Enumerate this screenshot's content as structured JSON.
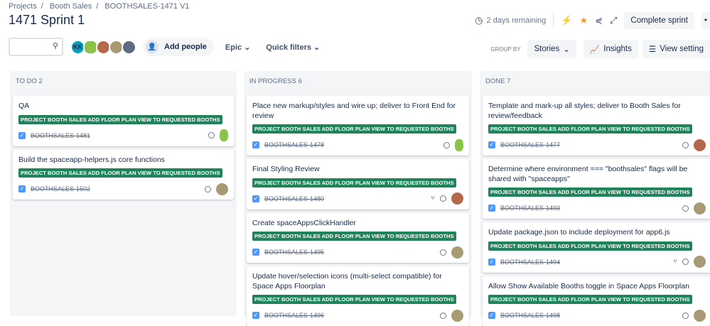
{
  "breadcrumbs": [
    "Projects",
    "Booth Sales",
    "BOOTHSALES-1471 V1"
  ],
  "title": "1471 Sprint 1",
  "header": {
    "remaining": "2 days remaining",
    "complete_sprint": "Complete sprint",
    "more": "•"
  },
  "toolbar": {
    "search_placeholder": "",
    "avatar_initials": "KK",
    "add_people": "Add people",
    "epic": "Epic",
    "quick_filters": "Quick filters",
    "group_by_label": "GROUP BY",
    "group_by_value": "Stories",
    "insights": "Insights",
    "view_settings": "View setting"
  },
  "colors": {
    "epic_lozenge": "#1f845a",
    "column_bg": "#f4f5f7",
    "star": "#ff991f",
    "checkbox": "#4c9aff"
  },
  "columns": [
    {
      "title": "TO DO 2",
      "cards": [
        {
          "title": "QA",
          "epic": "PROJECT BOOTH SALES ADD FLOOR PLAN VIEW TO REQUESTED BOOTHS",
          "key": "BOOTHSALES-1481",
          "avatar": "android",
          "branch": false
        },
        {
          "title": "Build the spaceapp-helpers.js core functions",
          "epic": "PROJECT BOOTH SALES ADD FLOOR PLAN VIEW TO REQUESTED BOOTHS",
          "key": "BOOTHSALES-1502",
          "avatar": "photo-b",
          "branch": false
        }
      ]
    },
    {
      "title": "IN PROGRESS 6",
      "cards": [
        {
          "title": "Place new markup/styles and wire up; deliver to Front End for review",
          "epic": "PROJECT BOOTH SALES ADD FLOOR PLAN VIEW TO REQUESTED BOOTHS",
          "key": "BOOTHSALES-1478",
          "avatar": "android",
          "branch": false
        },
        {
          "title": "Final Styling Review",
          "epic": "PROJECT BOOTH SALES ADD FLOOR PLAN VIEW TO REQUESTED BOOTHS",
          "key": "BOOTHSALES-1480",
          "avatar": "photo-a",
          "branch": true
        },
        {
          "title": "Create spaceAppsClickHandler",
          "epic": "PROJECT BOOTH SALES ADD FLOOR PLAN VIEW TO REQUESTED BOOTHS",
          "key": "BOOTHSALES-1495",
          "avatar": "photo-b",
          "branch": false
        },
        {
          "title": "Update hover/selection icons (multi-select compatible) for Space Apps Floorplan",
          "epic": "PROJECT BOOTH SALES ADD FLOOR PLAN VIEW TO REQUESTED BOOTHS",
          "key": "BOOTHSALES-1496",
          "avatar": "photo-b",
          "branch": false
        }
      ]
    },
    {
      "title": "DONE 7",
      "cards": [
        {
          "title": "Template and mark-up all styles; deliver to Booth Sales for review/feedback",
          "epic": "PROJECT BOOTH SALES ADD FLOOR PLAN VIEW TO REQUESTED BOOTHS",
          "key": "BOOTHSALES-1477",
          "avatar": "photo-a",
          "branch": false
        },
        {
          "title": "Determine where environment === \"boothsales\" flags will be shared with \"spaceapps\"",
          "epic": "PROJECT BOOTH SALES ADD FLOOR PLAN VIEW TO REQUESTED BOOTHS",
          "key": "BOOTHSALES-1493",
          "avatar": "photo-b",
          "branch": false
        },
        {
          "title": "Update package.json to include deployment for app6.js",
          "epic": "PROJECT BOOTH SALES ADD FLOOR PLAN VIEW TO REQUESTED BOOTHS",
          "key": "BOOTHSALES-1494",
          "avatar": "photo-b",
          "branch": true
        },
        {
          "title": "Allow Show Available Booths toggle in Space Apps Floorplan",
          "epic": "PROJECT BOOTH SALES ADD FLOOR PLAN VIEW TO REQUESTED BOOTHS",
          "key": "BOOTHSALES-1498",
          "avatar": "photo-b",
          "branch": false
        }
      ]
    }
  ]
}
